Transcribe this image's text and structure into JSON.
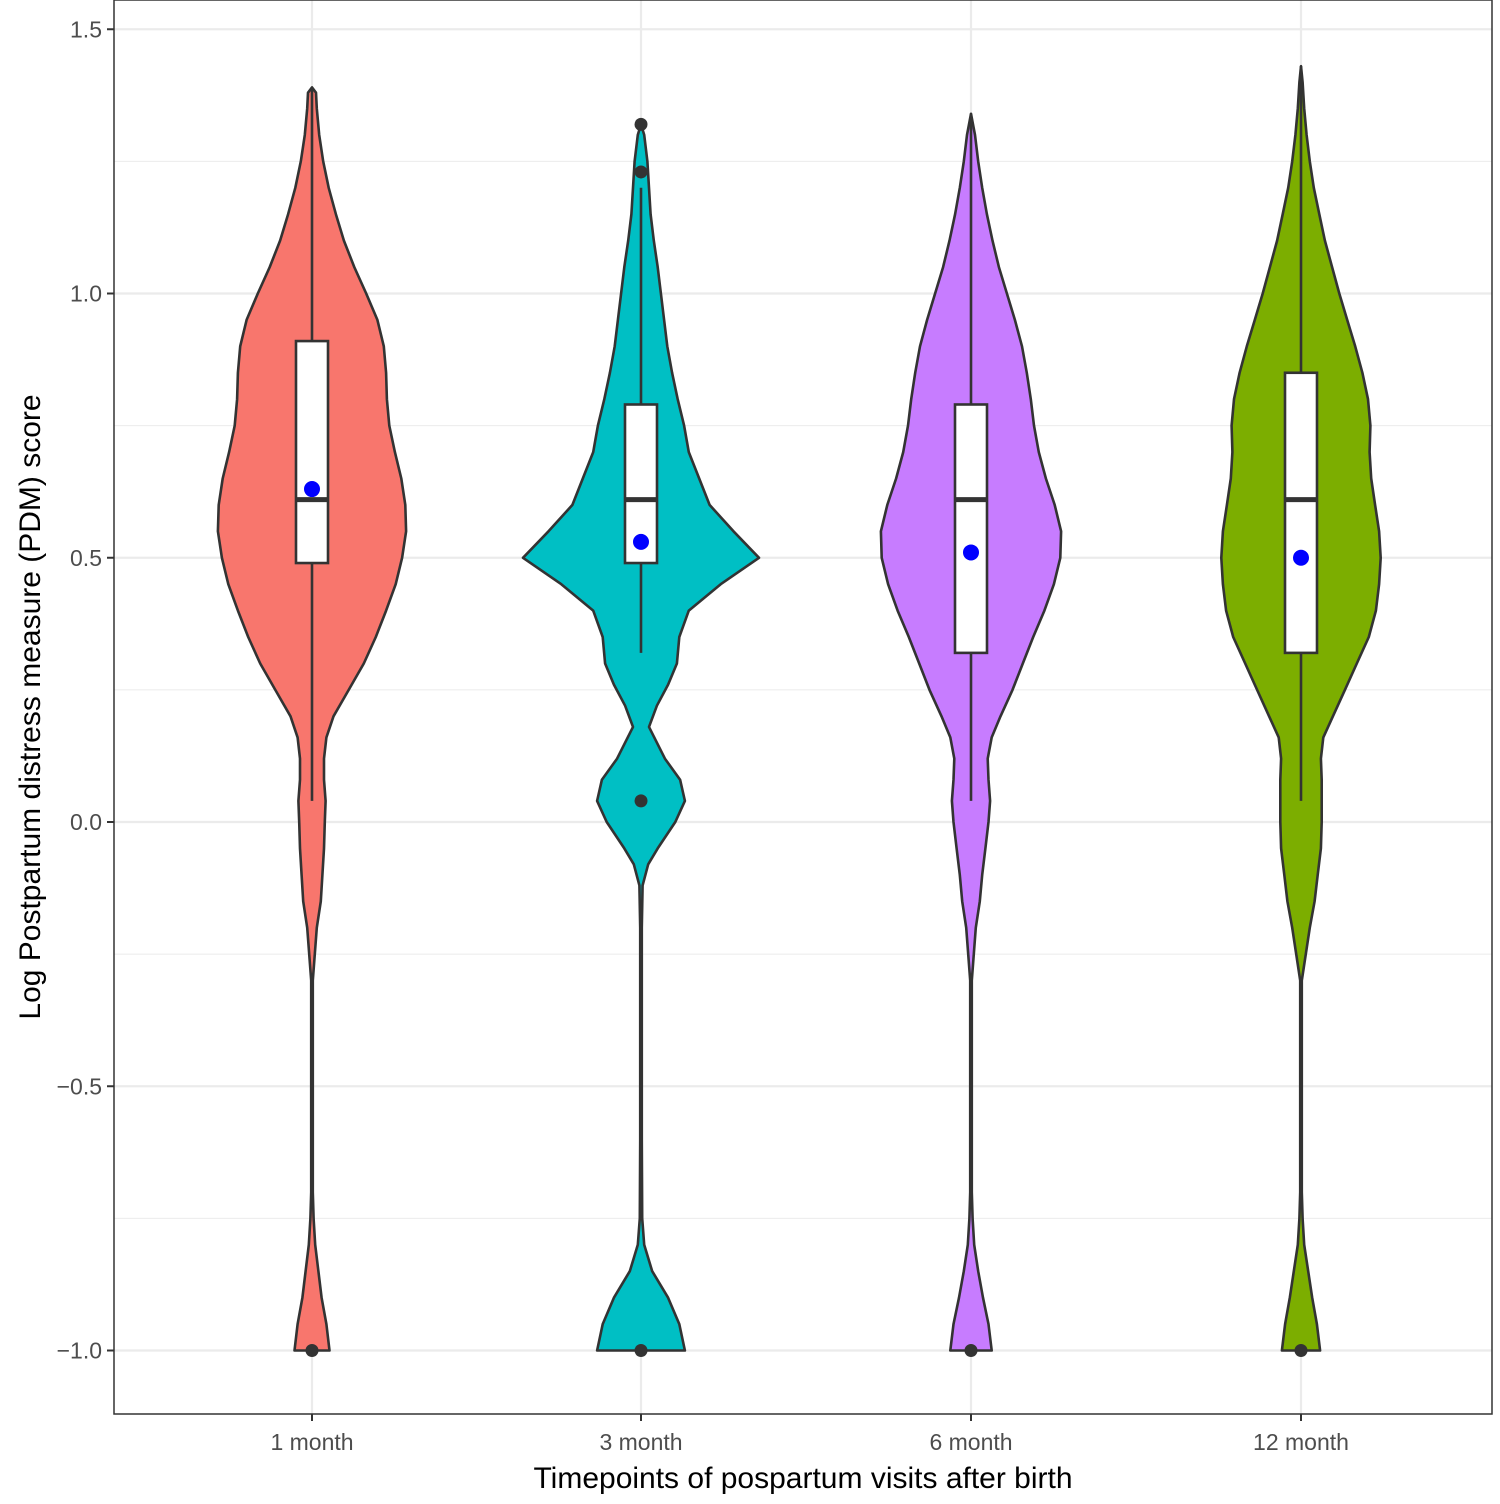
{
  "chart_data": {
    "type": "violin",
    "title": "",
    "xlabel": "Timepoints of pospartum visits after birth",
    "ylabel": "Log Postpartum distress measure (PDM) score",
    "ylim": [
      -1.12,
      1.54
    ],
    "yticks": [
      -1.0,
      -0.5,
      0.0,
      0.5,
      1.0,
      1.5
    ],
    "ytick_labels": [
      "−1.0",
      "−0.5",
      "0.0",
      "0.5",
      "1.0",
      "1.5"
    ],
    "grid": true,
    "legend": "none",
    "categories": [
      "1 month",
      "3 month",
      "6 month",
      "12 month"
    ],
    "colors": [
      "#F8766D",
      "#00BFC4",
      "#C77CFF",
      "#7CAE00"
    ],
    "mean_color": "#0000FF",
    "box": [
      {
        "category": "1 month",
        "whisker_low": 0.04,
        "q1": 0.49,
        "median": 0.61,
        "q3": 0.91,
        "whisker_high": 1.39
      },
      {
        "category": "3 month",
        "whisker_low": 0.32,
        "q1": 0.49,
        "median": 0.61,
        "q3": 0.79,
        "whisker_high": 1.2
      },
      {
        "category": "6 month",
        "whisker_low": 0.04,
        "q1": 0.32,
        "median": 0.61,
        "q3": 0.79,
        "whisker_high": 1.34
      },
      {
        "category": "12 month",
        "whisker_low": 0.04,
        "q1": 0.32,
        "median": 0.61,
        "q3": 0.85,
        "whisker_high": 1.43
      }
    ],
    "means": [
      0.63,
      0.53,
      0.51,
      0.5
    ],
    "outliers": [
      [
        -1.0
      ],
      [
        1.32,
        1.23,
        0.04,
        -1.0
      ],
      [
        -1.0
      ],
      [
        -1.0
      ]
    ],
    "density_profiles": [
      [
        [
          -1.0,
          0.022
        ],
        [
          -0.95,
          0.018
        ],
        [
          -0.9,
          0.012
        ],
        [
          -0.85,
          0.008
        ],
        [
          -0.8,
          0.004
        ],
        [
          -0.75,
          0.002
        ],
        [
          -0.7,
          0.001
        ],
        [
          -0.5,
          0.001
        ],
        [
          -0.3,
          0.001
        ],
        [
          -0.2,
          0.006
        ],
        [
          -0.15,
          0.011
        ],
        [
          -0.1,
          0.013
        ],
        [
          -0.05,
          0.015
        ],
        [
          0.0,
          0.016
        ],
        [
          0.04,
          0.017
        ],
        [
          0.08,
          0.015
        ],
        [
          0.12,
          0.015
        ],
        [
          0.16,
          0.018
        ],
        [
          0.2,
          0.027
        ],
        [
          0.25,
          0.046
        ],
        [
          0.3,
          0.065
        ],
        [
          0.35,
          0.08
        ],
        [
          0.4,
          0.093
        ],
        [
          0.45,
          0.105
        ],
        [
          0.5,
          0.113
        ],
        [
          0.55,
          0.118
        ],
        [
          0.6,
          0.117
        ],
        [
          0.65,
          0.112
        ],
        [
          0.7,
          0.104
        ],
        [
          0.75,
          0.097
        ],
        [
          0.8,
          0.094
        ],
        [
          0.85,
          0.093
        ],
        [
          0.9,
          0.09
        ],
        [
          0.95,
          0.082
        ],
        [
          1.0,
          0.068
        ],
        [
          1.05,
          0.053
        ],
        [
          1.1,
          0.04
        ],
        [
          1.15,
          0.03
        ],
        [
          1.2,
          0.021
        ],
        [
          1.25,
          0.014
        ],
        [
          1.3,
          0.009
        ],
        [
          1.35,
          0.006
        ],
        [
          1.38,
          0.005
        ],
        [
          1.39,
          0.0
        ]
      ],
      [
        [
          -1.0,
          0.055
        ],
        [
          -0.95,
          0.048
        ],
        [
          -0.9,
          0.034
        ],
        [
          -0.85,
          0.014
        ],
        [
          -0.8,
          0.004
        ],
        [
          -0.75,
          0.0015
        ],
        [
          -0.6,
          0.001
        ],
        [
          -0.4,
          0.001
        ],
        [
          -0.2,
          0.001
        ],
        [
          -0.12,
          0.002
        ],
        [
          -0.08,
          0.009
        ],
        [
          -0.05,
          0.021
        ],
        [
          0.0,
          0.043
        ],
        [
          0.04,
          0.055
        ],
        [
          0.08,
          0.049
        ],
        [
          0.12,
          0.03
        ],
        [
          0.18,
          0.01
        ],
        [
          0.22,
          0.02
        ],
        [
          0.26,
          0.034
        ],
        [
          0.3,
          0.045
        ],
        [
          0.35,
          0.048
        ],
        [
          0.4,
          0.06
        ],
        [
          0.45,
          0.1
        ],
        [
          0.5,
          0.148
        ],
        [
          0.55,
          0.116
        ],
        [
          0.6,
          0.086
        ],
        [
          0.65,
          0.073
        ],
        [
          0.7,
          0.06
        ],
        [
          0.75,
          0.054
        ],
        [
          0.8,
          0.046
        ],
        [
          0.85,
          0.039
        ],
        [
          0.9,
          0.033
        ],
        [
          0.95,
          0.029
        ],
        [
          1.0,
          0.025
        ],
        [
          1.05,
          0.021
        ],
        [
          1.1,
          0.016
        ],
        [
          1.15,
          0.012
        ],
        [
          1.2,
          0.01
        ],
        [
          1.25,
          0.008
        ],
        [
          1.3,
          0.004
        ],
        [
          1.32,
          0.0
        ]
      ],
      [
        [
          -1.0,
          0.026
        ],
        [
          -0.95,
          0.022
        ],
        [
          -0.9,
          0.015
        ],
        [
          -0.85,
          0.009
        ],
        [
          -0.8,
          0.004
        ],
        [
          -0.75,
          0.002
        ],
        [
          -0.7,
          0.001
        ],
        [
          -0.5,
          0.001
        ],
        [
          -0.3,
          0.001
        ],
        [
          -0.2,
          0.006
        ],
        [
          -0.15,
          0.011
        ],
        [
          -0.1,
          0.014
        ],
        [
          -0.05,
          0.018
        ],
        [
          0.0,
          0.022
        ],
        [
          0.04,
          0.024
        ],
        [
          0.08,
          0.022
        ],
        [
          0.12,
          0.021
        ],
        [
          0.16,
          0.026
        ],
        [
          0.2,
          0.037
        ],
        [
          0.25,
          0.052
        ],
        [
          0.3,
          0.065
        ],
        [
          0.35,
          0.078
        ],
        [
          0.4,
          0.092
        ],
        [
          0.45,
          0.104
        ],
        [
          0.5,
          0.112
        ],
        [
          0.55,
          0.113
        ],
        [
          0.6,
          0.105
        ],
        [
          0.65,
          0.094
        ],
        [
          0.7,
          0.085
        ],
        [
          0.75,
          0.079
        ],
        [
          0.8,
          0.075
        ],
        [
          0.85,
          0.07
        ],
        [
          0.9,
          0.064
        ],
        [
          0.95,
          0.055
        ],
        [
          1.0,
          0.045
        ],
        [
          1.05,
          0.035
        ],
        [
          1.1,
          0.027
        ],
        [
          1.15,
          0.02
        ],
        [
          1.2,
          0.014
        ],
        [
          1.25,
          0.009
        ],
        [
          1.3,
          0.005
        ],
        [
          1.34,
          0.0
        ]
      ],
      [
        [
          -1.0,
          0.024
        ],
        [
          -0.95,
          0.02
        ],
        [
          -0.9,
          0.014
        ],
        [
          -0.85,
          0.009
        ],
        [
          -0.8,
          0.004
        ],
        [
          -0.75,
          0.002
        ],
        [
          -0.7,
          0.001
        ],
        [
          -0.5,
          0.001
        ],
        [
          -0.3,
          0.001
        ],
        [
          -0.2,
          0.011
        ],
        [
          -0.15,
          0.017
        ],
        [
          -0.1,
          0.021
        ],
        [
          -0.05,
          0.025
        ],
        [
          0.0,
          0.026
        ],
        [
          0.04,
          0.026
        ],
        [
          0.08,
          0.026
        ],
        [
          0.12,
          0.025
        ],
        [
          0.16,
          0.028
        ],
        [
          0.2,
          0.04
        ],
        [
          0.25,
          0.055
        ],
        [
          0.3,
          0.07
        ],
        [
          0.35,
          0.085
        ],
        [
          0.4,
          0.094
        ],
        [
          0.45,
          0.098
        ],
        [
          0.5,
          0.1
        ],
        [
          0.55,
          0.098
        ],
        [
          0.6,
          0.093
        ],
        [
          0.65,
          0.088
        ],
        [
          0.7,
          0.086
        ],
        [
          0.75,
          0.087
        ],
        [
          0.8,
          0.084
        ],
        [
          0.85,
          0.077
        ],
        [
          0.9,
          0.068
        ],
        [
          0.95,
          0.058
        ],
        [
          1.0,
          0.048
        ],
        [
          1.05,
          0.039
        ],
        [
          1.1,
          0.03
        ],
        [
          1.15,
          0.023
        ],
        [
          1.2,
          0.016
        ],
        [
          1.25,
          0.011
        ],
        [
          1.3,
          0.007
        ],
        [
          1.35,
          0.004
        ],
        [
          1.4,
          0.002
        ],
        [
          1.43,
          0.0
        ]
      ]
    ]
  }
}
